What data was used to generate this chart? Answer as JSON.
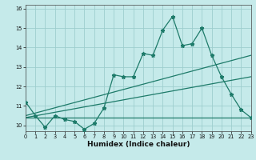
{
  "xlabel": "Humidex (Indice chaleur)",
  "bg_color": "#c5eaea",
  "grid_color": "#9ecece",
  "line_color": "#1e7b6a",
  "x_data": [
    0,
    1,
    2,
    3,
    4,
    5,
    6,
    7,
    8,
    9,
    10,
    11,
    12,
    13,
    14,
    15,
    16,
    17,
    18,
    19,
    20,
    21,
    22,
    23
  ],
  "y_main": [
    11.2,
    10.5,
    9.9,
    10.5,
    10.3,
    10.2,
    9.8,
    10.1,
    10.9,
    12.6,
    12.5,
    12.5,
    13.7,
    13.6,
    14.9,
    15.6,
    14.1,
    14.2,
    15.0,
    13.6,
    12.5,
    11.6,
    10.8,
    10.4
  ],
  "y_line1_start": 10.5,
  "y_line1_end": 13.6,
  "y_line2_start": 10.4,
  "y_line2_end": 12.5,
  "y_line3_start": 10.4,
  "y_line3_end": 10.4,
  "xlim": [
    0,
    23
  ],
  "ylim": [
    9.7,
    16.2
  ],
  "yticks": [
    10,
    11,
    12,
    13,
    14,
    15,
    16
  ],
  "xticks": [
    0,
    1,
    2,
    3,
    4,
    5,
    6,
    7,
    8,
    9,
    10,
    11,
    12,
    13,
    14,
    15,
    16,
    17,
    18,
    19,
    20,
    21,
    22,
    23
  ]
}
